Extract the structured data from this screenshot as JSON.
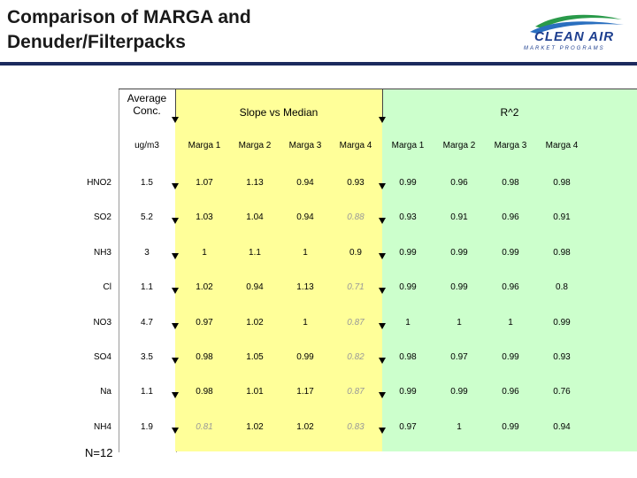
{
  "title": [
    "Comparison of MARGA and",
    "Denuder/Filterpacks"
  ],
  "logo": {
    "name": "CLEAN AIR",
    "subtitle": "MARKET PROGRAMS"
  },
  "headers": {
    "conc": [
      "Average",
      "Conc."
    ],
    "slope": "Slope vs Median",
    "r2": "R^2"
  },
  "subheaders": [
    "ug/m3",
    "Marga 1",
    "Marga 2",
    "Marga 3",
    "Marga 4",
    "Marga 1",
    "Marga 2",
    "Marga 3",
    "Marga 4"
  ],
  "rows": [
    {
      "label": "HNO2",
      "values": [
        "1.5",
        "1.07",
        "1.13",
        "0.94",
        "0.93",
        "0.99",
        "0.96",
        "0.98",
        "0.98"
      ],
      "dim": []
    },
    {
      "label": "SO2",
      "values": [
        "5.2",
        "1.03",
        "1.04",
        "0.94",
        "0.88",
        "0.93",
        "0.91",
        "0.96",
        "0.91"
      ],
      "dim": [
        4
      ]
    },
    {
      "label": "NH3",
      "values": [
        "3",
        "1",
        "1.1",
        "1",
        "0.9",
        "0.99",
        "0.99",
        "0.99",
        "0.98"
      ],
      "dim": []
    },
    {
      "label": "Cl",
      "values": [
        "1.1",
        "1.02",
        "0.94",
        "1.13",
        "0.71",
        "0.99",
        "0.99",
        "0.96",
        "0.8"
      ],
      "dim": [
        4
      ]
    },
    {
      "label": "NO3",
      "values": [
        "4.7",
        "0.97",
        "1.02",
        "1",
        "0.87",
        "1",
        "1",
        "1",
        "0.99"
      ],
      "dim": [
        4
      ]
    },
    {
      "label": "SO4",
      "values": [
        "3.5",
        "0.98",
        "1.05",
        "0.99",
        "0.82",
        "0.98",
        "0.97",
        "0.99",
        "0.93"
      ],
      "dim": [
        4
      ]
    },
    {
      "label": "Na",
      "values": [
        "1.1",
        "0.98",
        "1.01",
        "1.17",
        "0.87",
        "0.99",
        "0.99",
        "0.96",
        "0.76"
      ],
      "dim": [
        4
      ]
    },
    {
      "label": "NH4",
      "values": [
        "1.9",
        "0.81",
        "1.02",
        "1.02",
        "0.83",
        "0.97",
        "1",
        "0.99",
        "0.94"
      ],
      "dim": [
        1,
        4
      ]
    }
  ],
  "footnote": "N=12"
}
